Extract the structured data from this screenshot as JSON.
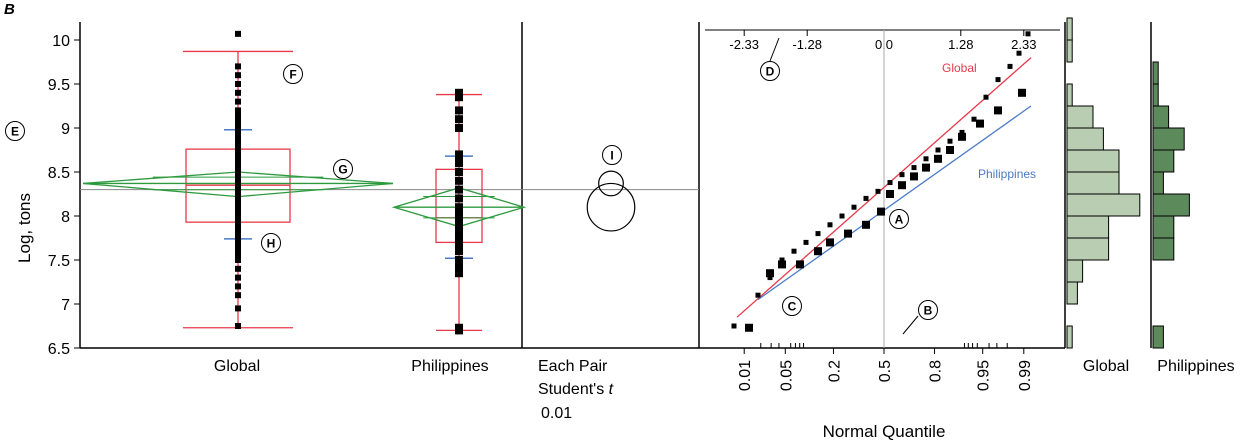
{
  "panel_letter": "B",
  "chart_data": [
    {
      "type": "box",
      "panel": "oneway",
      "ylabel": "Log, tons",
      "ylim": [
        6.5,
        10.2
      ],
      "yticks": [
        "6.5",
        "7",
        "7.5",
        "8",
        "8.5",
        "9",
        "9.5",
        "10"
      ],
      "categories": [
        "Global",
        "Philippines"
      ],
      "grand_mean": 8.3,
      "groups": [
        {
          "name": "Global",
          "box_colour": "#e8394a",
          "box": {
            "min": 6.73,
            "q1": 7.93,
            "median": 8.35,
            "q3": 8.76,
            "max": 9.87
          },
          "mean_diamond": {
            "mean": 8.37,
            "upper": 8.5,
            "lower": 8.22
          },
          "sd_ticks": [
            8.98,
            7.74
          ],
          "points": [
            6.75,
            6.95,
            7.1,
            7.2,
            7.3,
            7.4,
            7.5,
            7.55,
            7.6,
            7.65,
            7.7,
            7.75,
            7.8,
            7.85,
            7.9,
            7.95,
            8.0,
            8.05,
            8.1,
            8.15,
            8.2,
            8.25,
            8.3,
            8.35,
            8.4,
            8.45,
            8.5,
            8.55,
            8.6,
            8.65,
            8.7,
            8.75,
            8.8,
            8.85,
            8.9,
            8.95,
            9.0,
            9.05,
            9.1,
            9.15,
            9.2,
            9.3,
            9.4,
            9.5,
            9.6,
            9.7,
            10.07
          ]
        },
        {
          "name": "Philippines",
          "box_colour": "#e8394a",
          "box": {
            "min": 6.7,
            "q1": 7.7,
            "median": 7.98,
            "q3": 8.53,
            "max": 9.38
          },
          "mean_diamond": {
            "mean": 8.1,
            "upper": 8.32,
            "lower": 7.88
          },
          "sd_ticks": [
            8.68,
            7.52
          ],
          "points": [
            6.7,
            6.73,
            7.35,
            7.4,
            7.45,
            7.5,
            7.6,
            7.65,
            7.7,
            7.75,
            7.8,
            7.85,
            7.9,
            7.95,
            8.0,
            8.05,
            8.1,
            8.2,
            8.3,
            8.4,
            8.5,
            8.6,
            8.65,
            8.7,
            9.0,
            9.1,
            9.2,
            9.35,
            9.4
          ]
        }
      ],
      "annotations": [
        "E",
        "F",
        "G",
        "H"
      ]
    },
    {
      "type": "comparison-circles",
      "panel": "each-pair",
      "label_line1": "Each Pair",
      "label_line2_prefix": "Student's ",
      "label_line2_italic": "t",
      "label_line3": "0.01",
      "circles": [
        {
          "group": "Global",
          "center": 8.37,
          "radius": 0.14
        },
        {
          "group": "Philippines",
          "center": 8.1,
          "radius": 0.27
        }
      ],
      "annotations": [
        "I"
      ]
    },
    {
      "type": "scatter",
      "panel": "normal-quantile",
      "xlabel": "Normal Quantile",
      "xticks": [
        "0.01",
        "0.05",
        "0.2",
        "0.5",
        "0.8",
        "0.95",
        "0.99"
      ],
      "xticks_z": [
        "-2.33",
        "-1.28",
        "0.0",
        "1.28",
        "2.33"
      ],
      "series": [
        {
          "name": "Global",
          "colour": "#e8394a",
          "line": {
            "z_start": -2.45,
            "y_start": 6.85,
            "z_end": 2.45,
            "y_end": 9.8
          },
          "points": [
            [
              -2.5,
              6.75
            ],
            [
              -2.1,
              7.1
            ],
            [
              -1.9,
              7.3
            ],
            [
              -1.7,
              7.5
            ],
            [
              -1.5,
              7.6
            ],
            [
              -1.3,
              7.7
            ],
            [
              -1.1,
              7.8
            ],
            [
              -0.9,
              7.9
            ],
            [
              -0.7,
              8.0
            ],
            [
              -0.5,
              8.1
            ],
            [
              -0.3,
              8.2
            ],
            [
              -0.1,
              8.28
            ],
            [
              0.1,
              8.38
            ],
            [
              0.3,
              8.47
            ],
            [
              0.5,
              8.55
            ],
            [
              0.7,
              8.65
            ],
            [
              0.9,
              8.75
            ],
            [
              1.1,
              8.85
            ],
            [
              1.3,
              8.95
            ],
            [
              1.5,
              9.1
            ],
            [
              1.7,
              9.35
            ],
            [
              1.9,
              9.55
            ],
            [
              2.1,
              9.7
            ],
            [
              2.25,
              9.85
            ],
            [
              2.4,
              10.07
            ]
          ]
        },
        {
          "name": "Philippines",
          "colour": "#4a7bc8",
          "line": {
            "z_start": -2.1,
            "y_start": 7.05,
            "z_end": 2.45,
            "y_end": 9.25
          },
          "points": [
            [
              -2.25,
              6.73
            ],
            [
              -1.9,
              7.35
            ],
            [
              -1.7,
              7.45
            ],
            [
              -1.4,
              7.45
            ],
            [
              -1.1,
              7.6
            ],
            [
              -0.9,
              7.7
            ],
            [
              -0.6,
              7.8
            ],
            [
              -0.3,
              7.9
            ],
            [
              -0.05,
              8.05
            ],
            [
              0.1,
              8.25
            ],
            [
              0.3,
              8.35
            ],
            [
              0.5,
              8.45
            ],
            [
              0.7,
              8.55
            ],
            [
              0.9,
              8.65
            ],
            [
              1.1,
              8.75
            ],
            [
              1.3,
              8.9
            ],
            [
              1.6,
              9.05
            ],
            [
              1.9,
              9.2
            ],
            [
              2.3,
              9.4
            ]
          ]
        }
      ],
      "annotations": [
        "A",
        "B",
        "C",
        "D"
      ]
    },
    {
      "type": "histogram",
      "panel": "histograms",
      "categories": [
        "Global",
        "Philippines"
      ],
      "bin_edges": [
        6.5,
        6.75,
        7.0,
        7.25,
        7.5,
        7.75,
        8.0,
        8.25,
        8.5,
        8.75,
        9.0,
        9.25,
        9.5,
        9.75,
        10.0,
        10.25
      ],
      "series": [
        {
          "name": "Global",
          "colour": "#b8cdb1",
          "counts": [
            1,
            0,
            2,
            3,
            8,
            8,
            14,
            10,
            10,
            7,
            5,
            1,
            0,
            1,
            1
          ]
        },
        {
          "name": "Philippines",
          "colour": "#5d8a5a",
          "counts": [
            2,
            0,
            0,
            0,
            4,
            4,
            7,
            2,
            4,
            6,
            3,
            1,
            1,
            0,
            0
          ]
        }
      ]
    }
  ]
}
